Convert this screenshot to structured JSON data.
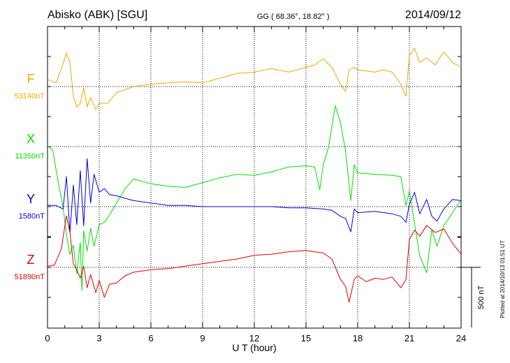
{
  "header": {
    "station": "Abisko (ABK)  [SGU]",
    "coords": "GG ( 68.36°,  18.82° )",
    "date": "2014/09/12"
  },
  "chart_data": {
    "type": "line",
    "xlabel": "U T (hour)",
    "xlim": [
      0,
      24
    ],
    "xticks": [
      "0",
      "3",
      "6",
      "9",
      "12",
      "15",
      "18",
      "21",
      "24"
    ],
    "scale_label": "500 nT",
    "scale_nT": 500,
    "footer_note": "Plotted at 2014/10/13 01:51  UT",
    "series": [
      {
        "name": "F",
        "baseline_label": "53140nT",
        "baseline": 53140,
        "color": "#f0a800",
        "x": [
          0,
          0.5,
          0.9,
          1.1,
          1.3,
          1.5,
          1.7,
          1.9,
          2.1,
          2.3,
          2.5,
          2.8,
          3.0,
          3.5,
          4,
          5,
          6,
          7,
          8,
          9,
          10,
          11,
          12,
          13,
          14,
          15,
          15.5,
          16,
          16.5,
          17,
          17.3,
          17.5,
          17.8,
          18,
          18.5,
          19,
          19.5,
          20,
          20.5,
          20.8,
          21,
          21.3,
          21.6,
          22,
          22.5,
          23,
          23.5,
          24
        ],
        "y": [
          53200,
          53170,
          53330,
          53420,
          53340,
          53060,
          52970,
          53000,
          53130,
          52970,
          53050,
          52950,
          53000,
          53000,
          53090,
          53140,
          53160,
          53170,
          53180,
          53170,
          53210,
          53250,
          53260,
          53290,
          53260,
          53300,
          53320,
          53370,
          53300,
          53160,
          53100,
          53280,
          53300,
          53280,
          53270,
          53260,
          53280,
          53260,
          53160,
          53060,
          53400,
          53460,
          53340,
          53380,
          53320,
          53430,
          53340,
          53300
        ]
      },
      {
        "name": "X",
        "baseline_label": "11350nT",
        "baseline": 11350,
        "color": "#00e000",
        "x": [
          0,
          0.3,
          0.6,
          0.9,
          1.1,
          1.3,
          1.5,
          1.7,
          1.9,
          2.0,
          2.1,
          2.3,
          2.5,
          2.7,
          3.0,
          3.3,
          3.6,
          4.0,
          4.5,
          5,
          6,
          7,
          8,
          9,
          10,
          11,
          12,
          13,
          14,
          15,
          15.5,
          15.8,
          16,
          16.3,
          16.7,
          17.0,
          17.3,
          17.6,
          17.8,
          18,
          19,
          20,
          20.5,
          20.8,
          21,
          21.3,
          21.6,
          22,
          22.3,
          22.6,
          23,
          23.5,
          24
        ],
        "y": [
          11360,
          11320,
          11070,
          10850,
          10620,
          10450,
          10530,
          10290,
          10550,
          10150,
          10650,
          10480,
          10670,
          10520,
          10700,
          10720,
          10780,
          10880,
          11000,
          11080,
          11040,
          11020,
          11010,
          11050,
          11090,
          11120,
          11110,
          11140,
          11180,
          11190,
          11180,
          10990,
          11200,
          11340,
          11690,
          11550,
          11310,
          10900,
          11200,
          11130,
          11120,
          11110,
          11100,
          10860,
          10980,
          10710,
          10440,
          10300,
          10660,
          10520,
          10690,
          10800,
          10910
        ]
      },
      {
        "name": "Y",
        "baseline_label": "1580nT",
        "baseline": 1580,
        "color": "#0000e0",
        "x": [
          0,
          0.5,
          0.9,
          1.1,
          1.3,
          1.5,
          1.7,
          1.9,
          2.1,
          2.3,
          2.5,
          2.7,
          3.0,
          3.3,
          3.6,
          4.0,
          4.5,
          5,
          6,
          7,
          8,
          9,
          10,
          11,
          12,
          13,
          14,
          15,
          16,
          16.5,
          17,
          17.3,
          17.6,
          17.8,
          18,
          19,
          20,
          20.5,
          20.8,
          21,
          21.3,
          21.6,
          22,
          22.3,
          22.6,
          23,
          23.5,
          24
        ],
        "y": [
          1590,
          1590,
          1560,
          1830,
          1360,
          1760,
          1430,
          1880,
          1420,
          1980,
          1610,
          1850,
          1700,
          1730,
          1680,
          1670,
          1650,
          1630,
          1610,
          1590,
          1590,
          1580,
          1580,
          1580,
          1580,
          1580,
          1570,
          1570,
          1560,
          1550,
          1500,
          1480,
          1370,
          1560,
          1530,
          1540,
          1520,
          1500,
          1450,
          1600,
          1700,
          1520,
          1640,
          1500,
          1460,
          1560,
          1640,
          1630
        ]
      },
      {
        "name": "Z",
        "baseline_label": "51890nT",
        "baseline": 51890,
        "color": "#e00000",
        "x": [
          0,
          0.4,
          0.8,
          1.1,
          1.3,
          1.5,
          1.7,
          1.9,
          2.1,
          2.3,
          2.5,
          2.8,
          3.0,
          3.3,
          3.6,
          4.0,
          4.5,
          5,
          6,
          7,
          8,
          9,
          10,
          11,
          12,
          13,
          14,
          15,
          16,
          16.5,
          17,
          17.3,
          17.5,
          17.8,
          18,
          18.5,
          19,
          19.5,
          20,
          20.5,
          20.8,
          21,
          21.3,
          21.6,
          22,
          22.5,
          23,
          23.5,
          24
        ],
        "y": [
          51900,
          51910,
          52040,
          52320,
          52180,
          51920,
          51870,
          51800,
          51900,
          51720,
          51830,
          51680,
          51780,
          51640,
          51750,
          51760,
          51820,
          51850,
          51870,
          51880,
          51900,
          51920,
          51940,
          51960,
          51990,
          52000,
          52020,
          52030,
          52010,
          51960,
          51790,
          51730,
          51600,
          51790,
          51820,
          51770,
          51800,
          51790,
          51810,
          51720,
          51790,
          52120,
          52200,
          52150,
          52240,
          52180,
          52210,
          52090,
          52000
        ]
      }
    ]
  }
}
